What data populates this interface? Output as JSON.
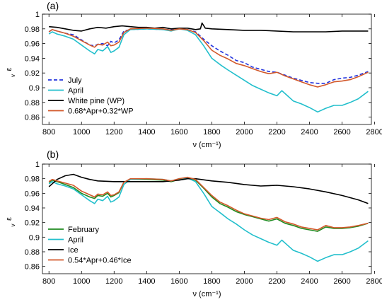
{
  "chart_data": [
    {
      "type": "line",
      "panel_label": "(a)",
      "xlabel": "ν (cm⁻¹)",
      "ylabel": "ε",
      "ylabel_sub": "v",
      "xlim": [
        760,
        2780
      ],
      "ylim": [
        0.85,
        1.0
      ],
      "xticks": [
        800,
        1000,
        1200,
        1400,
        1600,
        1800,
        2000,
        2200,
        2400,
        2600,
        2800
      ],
      "yticks": [
        0.86,
        0.88,
        0.9,
        0.92,
        0.94,
        0.96,
        0.98,
        1
      ],
      "ytick_labels": [
        "0.86",
        "0.88",
        "0.9",
        "0.92",
        "0.94",
        "0.96",
        "0.98",
        "1"
      ],
      "legend_position": "bottom-left",
      "series": [
        {
          "name": "July",
          "color": "#2233dd",
          "dash": "dashed",
          "x": [
            800,
            820,
            850,
            900,
            950,
            1000,
            1050,
            1080,
            1100,
            1130,
            1160,
            1180,
            1200,
            1230,
            1260,
            1300,
            1400,
            1500,
            1550,
            1600,
            1650,
            1700,
            1750,
            1800,
            1850,
            1900,
            1950,
            2000,
            2050,
            2100,
            2150,
            2200,
            2250,
            2300,
            2350,
            2400,
            2450,
            2500,
            2550,
            2600,
            2650,
            2700,
            2760
          ],
          "values": [
            0.976,
            0.979,
            0.977,
            0.974,
            0.972,
            0.965,
            0.958,
            0.957,
            0.959,
            0.96,
            0.957,
            0.963,
            0.961,
            0.965,
            0.977,
            0.979,
            0.98,
            0.979,
            0.979,
            0.98,
            0.979,
            0.976,
            0.966,
            0.957,
            0.95,
            0.944,
            0.937,
            0.934,
            0.928,
            0.925,
            0.922,
            0.921,
            0.917,
            0.913,
            0.91,
            0.907,
            0.906,
            0.906,
            0.911,
            0.913,
            0.914,
            0.917,
            0.922
          ]
        },
        {
          "name": "April",
          "color": "#22bfcc",
          "dash": "solid",
          "x": [
            800,
            820,
            850,
            900,
            950,
            1000,
            1050,
            1080,
            1100,
            1130,
            1160,
            1180,
            1200,
            1230,
            1260,
            1300,
            1400,
            1500,
            1550,
            1600,
            1650,
            1700,
            1750,
            1800,
            1830,
            1860,
            1900,
            1950,
            2000,
            2050,
            2100,
            2150,
            2200,
            2230,
            2260,
            2300,
            2350,
            2400,
            2450,
            2500,
            2550,
            2600,
            2650,
            2700,
            2760
          ],
          "values": [
            0.973,
            0.976,
            0.973,
            0.97,
            0.966,
            0.958,
            0.95,
            0.946,
            0.952,
            0.95,
            0.956,
            0.948,
            0.95,
            0.955,
            0.972,
            0.979,
            0.98,
            0.979,
            0.977,
            0.98,
            0.978,
            0.972,
            0.957,
            0.94,
            0.935,
            0.93,
            0.924,
            0.917,
            0.91,
            0.903,
            0.898,
            0.893,
            0.889,
            0.896,
            0.89,
            0.882,
            0.878,
            0.873,
            0.867,
            0.872,
            0.876,
            0.876,
            0.88,
            0.885,
            0.895
          ]
        },
        {
          "name": "White pine (WP)",
          "color": "#000000",
          "dash": "solid",
          "x": [
            800,
            850,
            900,
            950,
            1000,
            1050,
            1100,
            1150,
            1200,
            1250,
            1300,
            1350,
            1400,
            1450,
            1500,
            1550,
            1600,
            1650,
            1700,
            1730,
            1740,
            1760,
            1800,
            1900,
            2000,
            2100,
            2200,
            2300,
            2400,
            2500,
            2600,
            2700,
            2760
          ],
          "values": [
            0.983,
            0.982,
            0.98,
            0.978,
            0.977,
            0.98,
            0.982,
            0.981,
            0.983,
            0.984,
            0.983,
            0.982,
            0.982,
            0.981,
            0.982,
            0.98,
            0.981,
            0.981,
            0.979,
            0.98,
            0.988,
            0.981,
            0.98,
            0.979,
            0.978,
            0.978,
            0.977,
            0.976,
            0.976,
            0.976,
            0.977,
            0.977,
            0.977
          ]
        },
        {
          "name": "0.68*Apr+0.32*WP",
          "color": "#d2582a",
          "dash": "solid",
          "x": [
            800,
            820,
            850,
            900,
            950,
            1000,
            1050,
            1080,
            1100,
            1130,
            1160,
            1180,
            1200,
            1230,
            1260,
            1300,
            1400,
            1500,
            1550,
            1600,
            1650,
            1700,
            1750,
            1800,
            1850,
            1900,
            1950,
            2000,
            2050,
            2100,
            2150,
            2200,
            2250,
            2300,
            2350,
            2400,
            2450,
            2500,
            2550,
            2600,
            2650,
            2700,
            2760
          ],
          "values": [
            0.976,
            0.979,
            0.977,
            0.974,
            0.97,
            0.964,
            0.958,
            0.955,
            0.959,
            0.958,
            0.962,
            0.957,
            0.958,
            0.962,
            0.975,
            0.98,
            0.981,
            0.98,
            0.978,
            0.98,
            0.979,
            0.975,
            0.964,
            0.951,
            0.944,
            0.939,
            0.933,
            0.93,
            0.926,
            0.922,
            0.919,
            0.921,
            0.916,
            0.912,
            0.908,
            0.904,
            0.901,
            0.904,
            0.908,
            0.909,
            0.911,
            0.915,
            0.921
          ]
        }
      ]
    },
    {
      "type": "line",
      "panel_label": "(b)",
      "xlabel": "ν (cm⁻¹)",
      "ylabel": "ε",
      "ylabel_sub": "v",
      "xlim": [
        760,
        2780
      ],
      "ylim": [
        0.85,
        1.0
      ],
      "xticks": [
        800,
        1000,
        1200,
        1400,
        1600,
        1800,
        2000,
        2200,
        2400,
        2600,
        2800
      ],
      "yticks": [
        0.86,
        0.88,
        0.9,
        0.92,
        0.94,
        0.96,
        0.98,
        1
      ],
      "ytick_labels": [
        "0.86",
        "0.88",
        "0.9",
        "0.92",
        "0.94",
        "0.96",
        "0.98",
        "1"
      ],
      "legend_position": "bottom-left",
      "series": [
        {
          "name": "February",
          "color": "#1f8a1f",
          "dash": "solid",
          "x": [
            800,
            820,
            850,
            900,
            950,
            1000,
            1050,
            1080,
            1100,
            1130,
            1160,
            1180,
            1200,
            1230,
            1260,
            1300,
            1400,
            1500,
            1550,
            1600,
            1650,
            1700,
            1750,
            1800,
            1850,
            1900,
            1950,
            2000,
            2050,
            2100,
            2150,
            2200,
            2250,
            2300,
            2350,
            2400,
            2450,
            2500,
            2550,
            2600,
            2650,
            2700,
            2760
          ],
          "values": [
            0.975,
            0.978,
            0.976,
            0.972,
            0.968,
            0.96,
            0.955,
            0.953,
            0.957,
            0.956,
            0.96,
            0.955,
            0.957,
            0.961,
            0.975,
            0.979,
            0.979,
            0.978,
            0.976,
            0.979,
            0.981,
            0.978,
            0.967,
            0.955,
            0.946,
            0.941,
            0.935,
            0.931,
            0.928,
            0.925,
            0.922,
            0.925,
            0.919,
            0.916,
            0.912,
            0.91,
            0.908,
            0.914,
            0.912,
            0.912,
            0.913,
            0.915,
            0.919
          ]
        },
        {
          "name": "April",
          "color": "#22bfcc",
          "dash": "solid",
          "x": [
            800,
            820,
            850,
            900,
            950,
            1000,
            1050,
            1080,
            1100,
            1130,
            1160,
            1180,
            1200,
            1230,
            1260,
            1300,
            1400,
            1500,
            1550,
            1600,
            1650,
            1700,
            1750,
            1800,
            1830,
            1860,
            1900,
            1950,
            2000,
            2050,
            2100,
            2150,
            2200,
            2230,
            2260,
            2300,
            2350,
            2400,
            2450,
            2500,
            2550,
            2600,
            2650,
            2700,
            2760
          ],
          "values": [
            0.973,
            0.976,
            0.973,
            0.97,
            0.966,
            0.958,
            0.95,
            0.946,
            0.952,
            0.95,
            0.956,
            0.948,
            0.95,
            0.955,
            0.972,
            0.979,
            0.98,
            0.979,
            0.977,
            0.98,
            0.981,
            0.976,
            0.96,
            0.942,
            0.937,
            0.932,
            0.925,
            0.918,
            0.91,
            0.903,
            0.898,
            0.893,
            0.889,
            0.896,
            0.89,
            0.882,
            0.878,
            0.873,
            0.867,
            0.872,
            0.876,
            0.876,
            0.88,
            0.885,
            0.895
          ]
        },
        {
          "name": "Ice",
          "color": "#000000",
          "dash": "solid",
          "x": [
            800,
            850,
            900,
            950,
            1000,
            1050,
            1100,
            1200,
            1300,
            1400,
            1500,
            1600,
            1650,
            1700,
            1800,
            1900,
            2000,
            2100,
            2200,
            2300,
            2400,
            2500,
            2600,
            2700,
            2760
          ],
          "values": [
            0.969,
            0.979,
            0.984,
            0.986,
            0.982,
            0.979,
            0.977,
            0.976,
            0.976,
            0.976,
            0.976,
            0.978,
            0.98,
            0.98,
            0.977,
            0.975,
            0.972,
            0.97,
            0.971,
            0.969,
            0.966,
            0.962,
            0.957,
            0.951,
            0.946
          ]
        },
        {
          "name": "0.54*Apr+0.46*Ice",
          "color": "#d2582a",
          "dash": "solid",
          "x": [
            800,
            820,
            850,
            900,
            950,
            1000,
            1050,
            1080,
            1100,
            1130,
            1160,
            1180,
            1200,
            1230,
            1260,
            1300,
            1400,
            1500,
            1550,
            1600,
            1650,
            1700,
            1750,
            1800,
            1850,
            1900,
            1950,
            2000,
            2050,
            2100,
            2150,
            2200,
            2250,
            2300,
            2350,
            2400,
            2450,
            2500,
            2550,
            2600,
            2650,
            2700,
            2760
          ],
          "values": [
            0.976,
            0.979,
            0.977,
            0.974,
            0.971,
            0.963,
            0.958,
            0.955,
            0.959,
            0.958,
            0.962,
            0.957,
            0.958,
            0.962,
            0.975,
            0.98,
            0.98,
            0.979,
            0.977,
            0.98,
            0.982,
            0.979,
            0.968,
            0.957,
            0.948,
            0.943,
            0.937,
            0.932,
            0.929,
            0.926,
            0.924,
            0.927,
            0.921,
            0.918,
            0.914,
            0.912,
            0.91,
            0.916,
            0.913,
            0.913,
            0.914,
            0.916,
            0.919
          ]
        }
      ]
    }
  ]
}
